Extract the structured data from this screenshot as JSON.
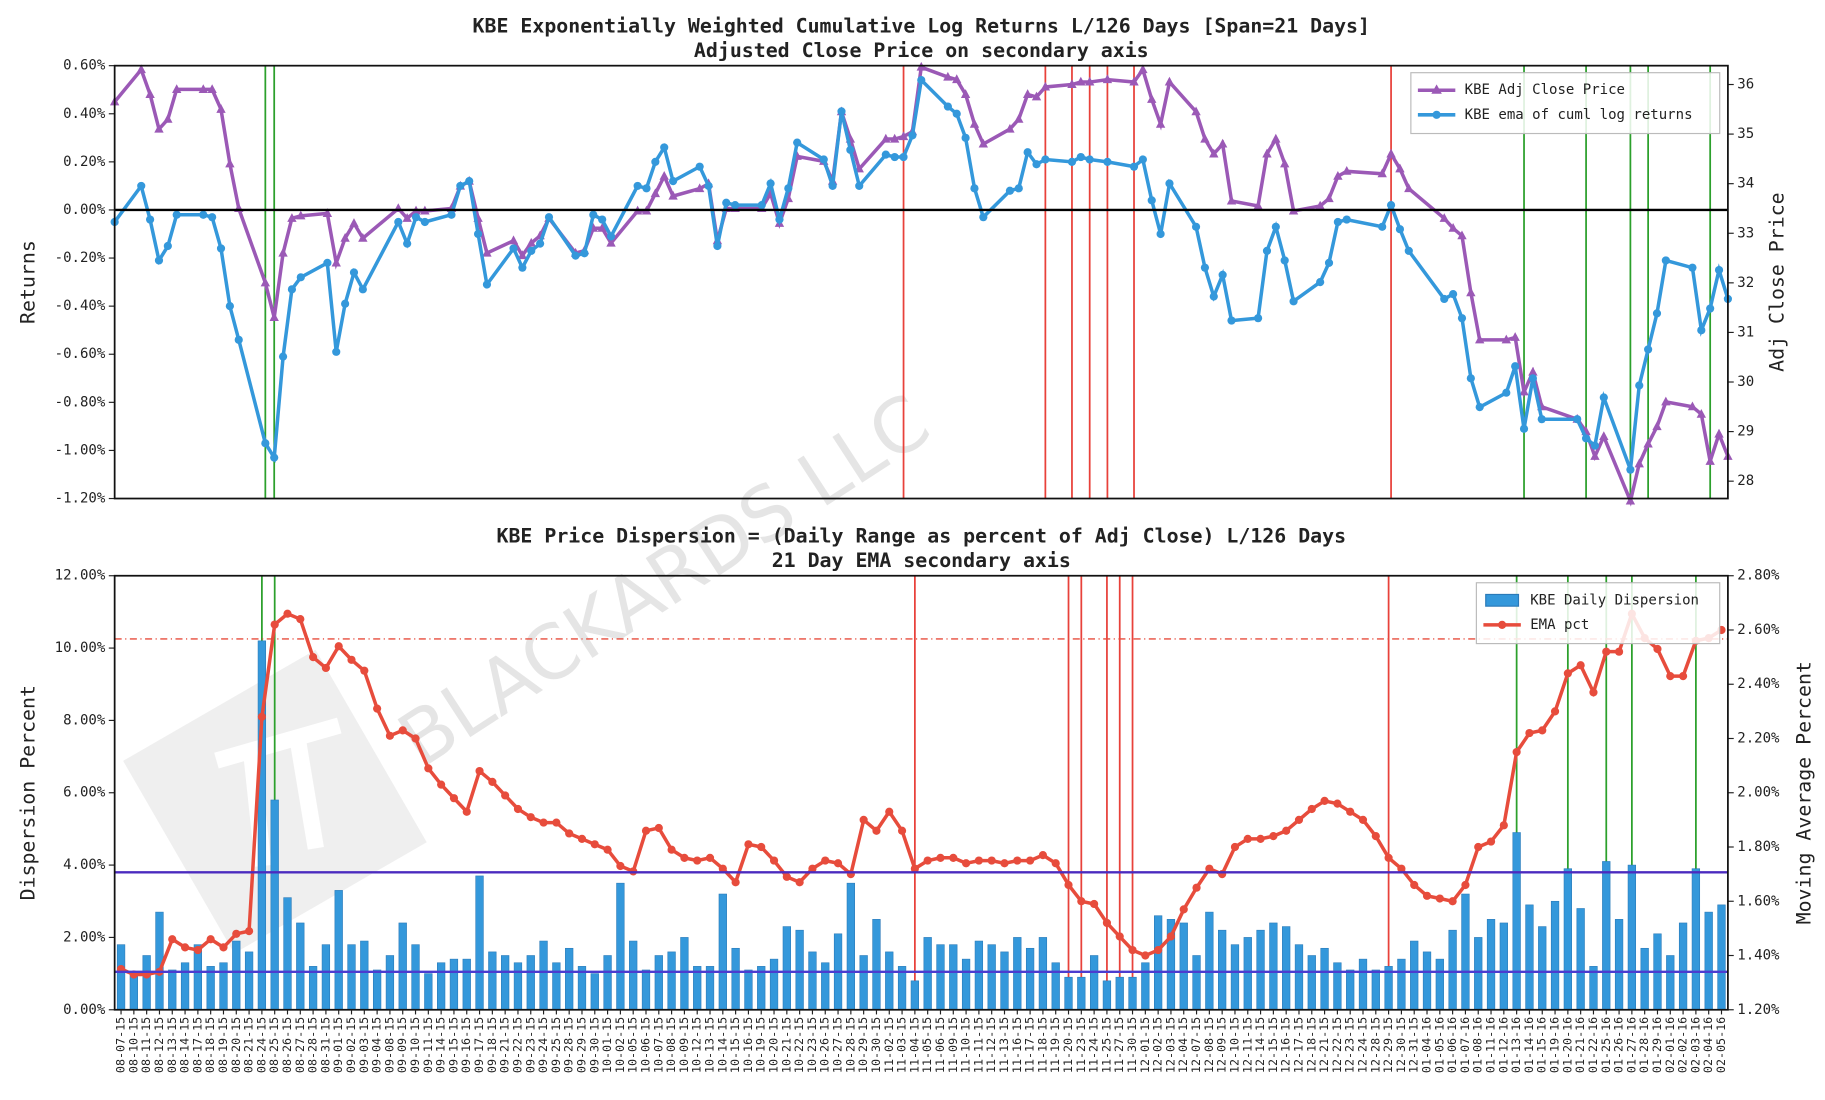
{
  "watermark": "BLACKARDS LLC",
  "chart_data": [
    {
      "type": "line",
      "title": "KBE Exponentially Weighted Cumulative Log Returns L/126 Days [Span=21 Days]",
      "subtitle": "Adjusted Close Price on secondary axis",
      "ylabel": "Returns",
      "y2label": "Adj Close Price",
      "ylim": [
        -1.2,
        0.6
      ],
      "yticks": [
        {
          "value": -1.2,
          "label": "-1.20%"
        },
        {
          "value": -1.0,
          "label": "-1.00%"
        },
        {
          "value": -0.8,
          "label": "-0.80%"
        },
        {
          "value": -0.6,
          "label": "-0.60%"
        },
        {
          "value": -0.4,
          "label": "-0.40%"
        },
        {
          "value": -0.2,
          "label": "-0.20%"
        },
        {
          "value": 0,
          "label": "0.00%"
        },
        {
          "value": 0.2,
          "label": "0.20%"
        },
        {
          "value": 0.4,
          "label": "0.40%"
        },
        {
          "value": 0.6,
          "label": "0.60%"
        }
      ],
      "y2lim": [
        27.65,
        36.38
      ],
      "y2ticks": [
        28,
        29,
        30,
        31,
        32,
        33,
        34,
        35,
        36
      ],
      "legend": "upper right",
      "hlines": [
        {
          "value": 0,
          "color": "#000000",
          "axis": "y",
          "style": "solid"
        }
      ],
      "signals": [
        {
          "date": "08-24-15",
          "color": "#2ca02c"
        },
        {
          "date": "08-25-15",
          "color": "#2ca02c"
        },
        {
          "date": "11-04-15",
          "color": "#e8413a"
        },
        {
          "date": "11-20-15",
          "color": "#e8413a"
        },
        {
          "date": "11-23-15",
          "color": "#e8413a"
        },
        {
          "date": "11-25-15",
          "color": "#e8413a"
        },
        {
          "date": "11-27-15",
          "color": "#e8413a"
        },
        {
          "date": "11-30-15",
          "color": "#e8413a"
        },
        {
          "date": "12-29-15",
          "color": "#e8413a"
        },
        {
          "date": "01-13-16",
          "color": "#2ca02c"
        },
        {
          "date": "01-20-16",
          "color": "#2ca02c"
        },
        {
          "date": "01-25-16",
          "color": "#2ca02c"
        },
        {
          "date": "01-27-16",
          "color": "#2ca02c"
        },
        {
          "date": "02-03-16",
          "color": "#2ca02c"
        }
      ],
      "series": [
        {
          "name": "KBE Adj Close Price",
          "color": "#9b59b6",
          "marker": "triangle",
          "axis": "y2",
          "values": [
            35.65,
            36.3,
            35.8,
            35.1,
            35.3,
            35.9,
            35.9,
            35.9,
            35.5,
            34.4,
            33.5,
            32.0,
            31.3,
            32.6,
            33.3,
            33.35,
            33.4,
            32.4,
            32.9,
            33.2,
            32.9,
            33.5,
            33.3,
            33.45,
            33.45,
            33.5,
            33.95,
            34.05,
            33.3,
            32.6,
            32.85,
            32.55,
            32.8,
            32.95,
            33.3,
            32.6,
            32.65,
            33.1,
            33.1,
            32.8,
            33.45,
            33.45,
            33.8,
            34.15,
            33.75,
            33.9,
            34.0,
            32.85,
            33.5,
            33.5,
            33.5,
            33.8,
            33.2,
            33.7,
            34.55,
            34.45,
            34.05,
            35.45,
            34.9,
            34.3,
            34.9,
            34.9,
            34.95,
            35.05,
            36.35,
            36.15,
            36.1,
            35.8,
            35.2,
            34.8,
            35.1,
            35.3,
            35.8,
            35.75,
            35.95,
            36.0,
            36.05,
            36.05,
            36.1,
            36.05,
            36.3,
            35.7,
            35.2,
            36.05,
            35.45,
            34.9,
            34.6,
            34.8,
            33.65,
            33.55,
            34.6,
            34.9,
            34.4,
            33.45,
            33.55,
            33.7,
            34.15,
            34.25,
            34.2,
            34.6,
            34.3,
            33.9,
            33.3,
            33.1,
            32.95,
            31.8,
            30.85,
            30.85,
            30.9,
            29.8,
            30.2,
            29.5,
            29.25,
            29.0,
            28.5,
            28.9,
            27.6,
            28.35,
            28.75,
            29.1,
            29.6,
            29.5,
            29.35,
            28.4,
            28.95,
            28.5
          ]
        },
        {
          "name": "KBE ema of cuml log returns",
          "color": "#3498db",
          "marker": "circle",
          "axis": "y",
          "values": [
            -0.05,
            0.1,
            -0.04,
            -0.21,
            -0.15,
            -0.02,
            -0.02,
            -0.03,
            -0.16,
            -0.4,
            -0.54,
            -0.97,
            -1.03,
            -0.61,
            -0.33,
            -0.28,
            -0.22,
            -0.59,
            -0.39,
            -0.26,
            -0.33,
            -0.05,
            -0.14,
            -0.03,
            -0.05,
            -0.02,
            0.1,
            0.12,
            -0.1,
            -0.31,
            -0.16,
            -0.24,
            -0.17,
            -0.14,
            -0.03,
            -0.19,
            -0.18,
            -0.02,
            -0.04,
            -0.11,
            0.1,
            0.09,
            0.2,
            0.26,
            0.12,
            0.18,
            0.1,
            -0.15,
            0.03,
            0.02,
            0.02,
            0.11,
            -0.04,
            0.09,
            0.28,
            0.21,
            0.1,
            0.41,
            0.25,
            0.1,
            0.23,
            0.22,
            0.22,
            0.31,
            0.54,
            0.43,
            0.4,
            0.3,
            0.09,
            -0.03,
            0.08,
            0.09,
            0.24,
            0.19,
            0.21,
            0.2,
            0.22,
            0.21,
            0.2,
            0.18,
            0.21,
            0.04,
            -0.1,
            0.11,
            -0.07,
            -0.24,
            -0.36,
            -0.27,
            -0.46,
            -0.45,
            -0.17,
            -0.07,
            -0.21,
            -0.38,
            -0.3,
            -0.22,
            -0.05,
            -0.04,
            -0.07,
            0.02,
            -0.08,
            -0.17,
            -0.37,
            -0.35,
            -0.45,
            -0.7,
            -0.82,
            -0.76,
            -0.65,
            -0.91,
            -0.7,
            -0.87,
            -0.87,
            -0.95,
            -0.98,
            -0.78,
            -1.08,
            -0.73,
            -0.58,
            -0.43,
            -0.21,
            -0.24,
            -0.5,
            -0.41,
            -0.25,
            -0.37
          ]
        }
      ]
    },
    {
      "type": "bar",
      "title": "KBE Price Dispersion = (Daily Range as percent of Adj Close) L/126 Days",
      "subtitle": "21 Day EMA secondary axis",
      "ylabel": "Dispersion Percent",
      "y2label": "Moving Average Percent",
      "categories": [
        "08-07-15",
        "08-10-15",
        "08-11-15",
        "08-12-15",
        "08-13-15",
        "08-14-15",
        "08-17-15",
        "08-18-15",
        "08-19-15",
        "08-20-15",
        "08-21-15",
        "08-24-15",
        "08-25-15",
        "08-26-15",
        "08-27-15",
        "08-28-15",
        "08-31-15",
        "09-01-15",
        "09-02-15",
        "09-03-15",
        "09-04-15",
        "09-08-15",
        "09-09-15",
        "09-10-15",
        "09-11-15",
        "09-14-15",
        "09-15-15",
        "09-16-15",
        "09-17-15",
        "09-18-15",
        "09-21-15",
        "09-22-15",
        "09-23-15",
        "09-24-15",
        "09-25-15",
        "09-28-15",
        "09-29-15",
        "09-30-15",
        "10-01-15",
        "10-02-15",
        "10-05-15",
        "10-06-15",
        "10-07-15",
        "10-08-15",
        "10-09-15",
        "10-12-15",
        "10-13-15",
        "10-14-15",
        "10-15-15",
        "10-16-15",
        "10-19-15",
        "10-20-15",
        "10-21-15",
        "10-22-15",
        "10-23-15",
        "10-26-15",
        "10-27-15",
        "10-28-15",
        "10-29-15",
        "10-30-15",
        "11-02-15",
        "11-03-15",
        "11-04-15",
        "11-05-15",
        "11-06-15",
        "11-09-15",
        "11-10-15",
        "11-11-15",
        "11-12-15",
        "11-13-15",
        "11-16-15",
        "11-17-15",
        "11-18-15",
        "11-19-15",
        "11-20-15",
        "11-23-15",
        "11-24-15",
        "11-25-15",
        "11-27-15",
        "11-30-15",
        "12-01-15",
        "12-02-15",
        "12-03-15",
        "12-04-15",
        "12-07-15",
        "12-08-15",
        "12-09-15",
        "12-10-15",
        "12-11-15",
        "12-14-15",
        "12-15-15",
        "12-16-15",
        "12-17-15",
        "12-18-15",
        "12-21-15",
        "12-22-15",
        "12-23-15",
        "12-24-15",
        "12-28-15",
        "12-29-15",
        "12-30-15",
        "12-31-15",
        "01-04-16",
        "01-05-16",
        "01-06-16",
        "01-07-16",
        "01-08-16",
        "01-11-16",
        "01-12-16",
        "01-13-16",
        "01-14-16",
        "01-15-16",
        "01-19-16",
        "01-20-16",
        "01-21-16",
        "01-22-16",
        "01-25-16",
        "01-26-16",
        "01-27-16",
        "01-28-16",
        "01-29-16",
        "02-01-16",
        "02-02-16",
        "02-03-16",
        "02-04-16",
        "02-05-16"
      ],
      "ylim": [
        0,
        12
      ],
      "yticks": [
        {
          "value": 0,
          "label": "0.00%"
        },
        {
          "value": 2,
          "label": "2.00%"
        },
        {
          "value": 4,
          "label": "4.00%"
        },
        {
          "value": 6,
          "label": "6.00%"
        },
        {
          "value": 8,
          "label": "8.00%"
        },
        {
          "value": 10,
          "label": "10.00%"
        },
        {
          "value": 12,
          "label": "12.00%"
        }
      ],
      "y2lim": [
        1.2,
        2.8
      ],
      "y2ticks": [
        {
          "value": 1.2,
          "label": "1.20%"
        },
        {
          "value": 1.4,
          "label": "1.40%"
        },
        {
          "value": 1.6,
          "label": "1.60%"
        },
        {
          "value": 1.8,
          "label": "1.80%"
        },
        {
          "value": 2.0,
          "label": "2.00%"
        },
        {
          "value": 2.2,
          "label": "2.20%"
        },
        {
          "value": 2.4,
          "label": "2.40%"
        },
        {
          "value": 2.6,
          "label": "2.60%"
        },
        {
          "value": 2.8,
          "label": "2.80%"
        }
      ],
      "legend": "upper right",
      "hlines": [
        {
          "value": 3.8,
          "color": "#4b2bbf",
          "axis": "y",
          "style": "solid"
        },
        {
          "value": 1.05,
          "color": "#4b3ccf",
          "axis": "y",
          "style": "solid"
        },
        {
          "value": 2.567,
          "color": "#e74c3c",
          "axis": "y2",
          "style": "dashdot"
        }
      ],
      "signals": [
        {
          "date": "08-24-15",
          "color": "#2ca02c"
        },
        {
          "date": "08-25-15",
          "color": "#2ca02c"
        },
        {
          "date": "11-04-15",
          "color": "#e8413a"
        },
        {
          "date": "11-20-15",
          "color": "#e8413a"
        },
        {
          "date": "11-23-15",
          "color": "#e8413a"
        },
        {
          "date": "11-25-15",
          "color": "#e8413a"
        },
        {
          "date": "11-27-15",
          "color": "#e8413a"
        },
        {
          "date": "11-30-15",
          "color": "#e8413a"
        },
        {
          "date": "12-29-15",
          "color": "#e8413a"
        },
        {
          "date": "01-13-16",
          "color": "#2ca02c"
        },
        {
          "date": "01-20-16",
          "color": "#2ca02c"
        },
        {
          "date": "01-25-16",
          "color": "#2ca02c"
        },
        {
          "date": "01-27-16",
          "color": "#2ca02c"
        },
        {
          "date": "02-03-16",
          "color": "#2ca02c"
        }
      ],
      "series": [
        {
          "name": "KBE Daily Dispersion",
          "color": "#3498db",
          "kind": "bar",
          "axis": "y",
          "values": [
            1.8,
            1.0,
            1.5,
            2.7,
            1.1,
            1.3,
            1.8,
            1.2,
            1.3,
            1.9,
            1.6,
            10.2,
            5.8,
            3.1,
            2.4,
            1.2,
            1.8,
            3.3,
            1.8,
            1.9,
            1.1,
            1.5,
            2.4,
            1.8,
            1.0,
            1.3,
            1.4,
            1.4,
            3.7,
            1.6,
            1.5,
            1.3,
            1.5,
            1.9,
            1.3,
            1.7,
            1.2,
            1.0,
            1.5,
            3.5,
            1.9,
            1.1,
            1.5,
            1.6,
            2.0,
            1.2,
            1.2,
            3.2,
            1.7,
            1.1,
            1.2,
            1.4,
            2.3,
            2.2,
            1.6,
            1.3,
            2.1,
            3.5,
            1.5,
            2.5,
            1.6,
            1.2,
            0.8,
            2.0,
            1.8,
            1.8,
            1.4,
            1.9,
            1.8,
            1.6,
            2.0,
            1.7,
            2.0,
            1.3,
            0.9,
            0.9,
            1.5,
            0.8,
            0.9,
            0.9,
            1.3,
            2.6,
            2.5,
            2.4,
            1.5,
            2.7,
            2.2,
            1.8,
            2.0,
            2.2,
            2.4,
            2.3,
            1.8,
            1.5,
            1.7,
            1.3,
            1.1,
            1.4,
            1.1,
            1.2,
            1.4,
            1.9,
            1.6,
            1.4,
            2.2,
            3.2,
            2.0,
            2.5,
            2.4,
            4.9,
            2.9,
            2.3,
            3.0,
            3.9,
            2.8,
            1.2,
            4.1,
            2.5,
            4.0,
            1.7,
            2.1,
            1.5,
            2.4,
            3.9,
            2.7,
            2.9
          ]
        },
        {
          "name": "EMA pct",
          "color": "#e74c3c",
          "kind": "line",
          "marker": "circle",
          "axis": "y2",
          "values": [
            1.35,
            1.33,
            1.33,
            1.34,
            1.46,
            1.43,
            1.42,
            1.46,
            1.43,
            1.48,
            1.49,
            2.28,
            2.62,
            2.66,
            2.64,
            2.5,
            2.46,
            2.54,
            2.49,
            2.45,
            2.31,
            2.21,
            2.23,
            2.2,
            2.09,
            2.03,
            1.98,
            1.93,
            2.08,
            2.04,
            1.99,
            1.94,
            1.91,
            1.89,
            1.89,
            1.85,
            1.83,
            1.81,
            1.79,
            1.73,
            1.71,
            1.86,
            1.87,
            1.79,
            1.76,
            1.75,
            1.76,
            1.72,
            1.67,
            1.81,
            1.8,
            1.75,
            1.69,
            1.67,
            1.72,
            1.75,
            1.74,
            1.7,
            1.9,
            1.86,
            1.93,
            1.86,
            1.72,
            1.75,
            1.76,
            1.76,
            1.74,
            1.75,
            1.75,
            1.74,
            1.75,
            1.75,
            1.77,
            1.74,
            1.66,
            1.6,
            1.59,
            1.52,
            1.47,
            1.42,
            1.4,
            1.42,
            1.47,
            1.57,
            1.65,
            1.72,
            1.7,
            1.8,
            1.83,
            1.83,
            1.84,
            1.86,
            1.9,
            1.94,
            1.97,
            1.96,
            1.93,
            1.9,
            1.84,
            1.76,
            1.72,
            1.66,
            1.62,
            1.61,
            1.6,
            1.66,
            1.8,
            1.82,
            1.88,
            2.15,
            2.22,
            2.23,
            2.3,
            2.44,
            2.47,
            2.37,
            2.52,
            2.52,
            2.66,
            2.57,
            2.53,
            2.43,
            2.43,
            2.56,
            2.57,
            2.6
          ]
        }
      ]
    }
  ]
}
